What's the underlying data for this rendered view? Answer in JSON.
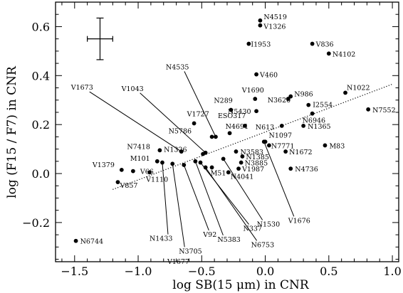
{
  "chart_data": {
    "type": "scatter",
    "xlabel": "log SB(15 μm) in CNR",
    "ylabel": "log (F15 / F7) in CNR",
    "xlim": [
      -1.65,
      1.05
    ],
    "ylim": [
      -0.36,
      0.7
    ],
    "xticks": [
      -1.5,
      -1.0,
      -0.5,
      0.0,
      0.5,
      1.0
    ],
    "xtick_labels": [
      "−1.5",
      "−1.0",
      "−0.5",
      "0.0",
      "0.5",
      "1.0"
    ],
    "yticks": [
      -0.2,
      0.0,
      0.2,
      0.4,
      0.6
    ],
    "ytick_labels": [
      "−0.2",
      "0.0",
      "0.2",
      "0.4",
      "0.6"
    ],
    "error_bar": {
      "x": -1.3,
      "y": 0.55,
      "xerr": 0.1,
      "yerr": 0.085
    },
    "fit_line": {
      "x": [
        -1.2,
        1.0
      ],
      "y": [
        -0.065,
        0.365
      ],
      "style": "dotted"
    },
    "points": [
      {
        "label": "N4519",
        "x": -0.04,
        "y": 0.625
      },
      {
        "label": "V1326",
        "x": -0.04,
        "y": 0.605
      },
      {
        "label": "I1953",
        "x": -0.13,
        "y": 0.53
      },
      {
        "label": "V836",
        "x": 0.37,
        "y": 0.53
      },
      {
        "label": "N4102",
        "x": 0.5,
        "y": 0.49
      },
      {
        "label": "V460",
        "x": -0.07,
        "y": 0.405
      },
      {
        "label": "N1022",
        "x": 0.63,
        "y": 0.33
      },
      {
        "label": "V1690",
        "x": -0.08,
        "y": 0.305
      },
      {
        "label": "N986",
        "x": 0.2,
        "y": 0.315
      },
      {
        "label": "N3620",
        "x": 0.18,
        "y": 0.305
      },
      {
        "label": "I2554",
        "x": 0.34,
        "y": 0.28
      },
      {
        "label": "N289",
        "x": -0.27,
        "y": 0.26
      },
      {
        "label": "N5430",
        "x": -0.07,
        "y": 0.255
      },
      {
        "label": "N7552",
        "x": 0.81,
        "y": 0.262
      },
      {
        "label": "N6946",
        "x": 0.37,
        "y": 0.245
      },
      {
        "label": "V1727",
        "x": -0.56,
        "y": 0.205
      },
      {
        "label": "ESO317",
        "x": -0.16,
        "y": 0.195
      },
      {
        "label": "N613",
        "x": 0.13,
        "y": 0.195
      },
      {
        "label": "N1365",
        "x": 0.3,
        "y": 0.195
      },
      {
        "label": "N4691",
        "x": -0.28,
        "y": 0.165
      },
      {
        "label": "N5786",
        "x": -0.42,
        "y": 0.15
      },
      {
        "label": "M83",
        "x": 0.47,
        "y": 0.115
      },
      {
        "label": "N1097",
        "x": 0.0,
        "y": 0.13
      },
      {
        "label": "N7771",
        "x": 0.03,
        "y": 0.115
      },
      {
        "label": "N1672",
        "x": 0.16,
        "y": 0.09
      },
      {
        "label": "N7418",
        "x": -0.83,
        "y": 0.095
      },
      {
        "label": "N1326",
        "x": -0.49,
        "y": 0.08
      },
      {
        "label": "N3583",
        "x": -0.23,
        "y": 0.09
      },
      {
        "label": "N1385",
        "x": -0.18,
        "y": 0.07
      },
      {
        "label": "M101",
        "x": -0.85,
        "y": 0.05
      },
      {
        "label": "N3885",
        "x": -0.19,
        "y": 0.045
      },
      {
        "label": "V1379",
        "x": -1.13,
        "y": 0.015
      },
      {
        "label": "V66",
        "x": -1.04,
        "y": 0.01
      },
      {
        "label": "M51",
        "x": -0.42,
        "y": 0.025
      },
      {
        "label": "V1987",
        "x": -0.21,
        "y": 0.02
      },
      {
        "label": "N4736",
        "x": 0.2,
        "y": 0.02
      },
      {
        "label": "V1110",
        "x": -0.91,
        "y": 0.005
      },
      {
        "label": "N4041",
        "x": -0.29,
        "y": 0.005
      },
      {
        "label": "V857",
        "x": -1.16,
        "y": -0.035
      },
      {
        "label": "N6744",
        "x": -1.49,
        "y": -0.275
      },
      {
        "label": "V1673",
        "x": -0.66,
        "y": 0.09
      },
      {
        "label": "V1043",
        "x": -0.47,
        "y": 0.085
      },
      {
        "label": "N4535",
        "x": -0.39,
        "y": 0.15
      },
      {
        "label": "V1676",
        "x": -0.01,
        "y": 0.13
      },
      {
        "label": "N1530",
        "x": -0.33,
        "y": 0.06
      },
      {
        "label": "N1433",
        "x": -0.81,
        "y": 0.045
      },
      {
        "label": "N3705",
        "x": -0.73,
        "y": 0.04
      },
      {
        "label": "V92",
        "x": -0.64,
        "y": 0.035
      },
      {
        "label": "N5383",
        "x": -0.55,
        "y": 0.05
      },
      {
        "label": "N337",
        "x": -0.51,
        "y": 0.045
      },
      {
        "label": "N6753",
        "x": -0.47,
        "y": 0.025
      },
      {
        "label": "V1677",
        "x": -0.67,
        "y": -0.005
      }
    ]
  }
}
